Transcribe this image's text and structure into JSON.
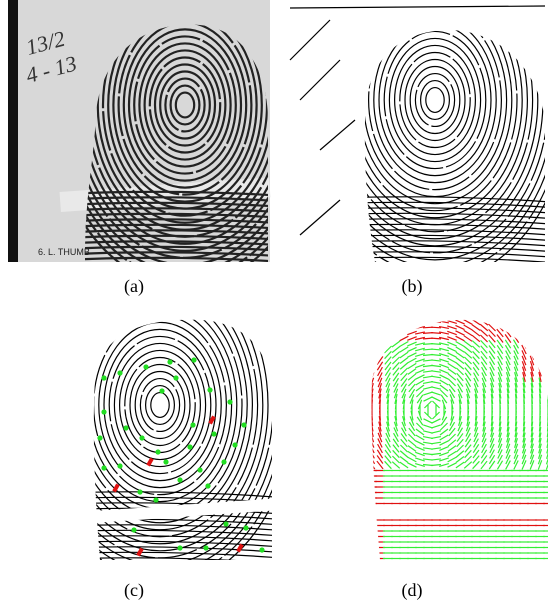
{
  "panels": [
    {
      "label": "(a)"
    },
    {
      "label": "(b)"
    },
    {
      "label": "(c)"
    },
    {
      "label": "(d)"
    }
  ],
  "card_text": "6. L. THUMB",
  "handwriting": [
    "13/2",
    "4 - 13"
  ]
}
